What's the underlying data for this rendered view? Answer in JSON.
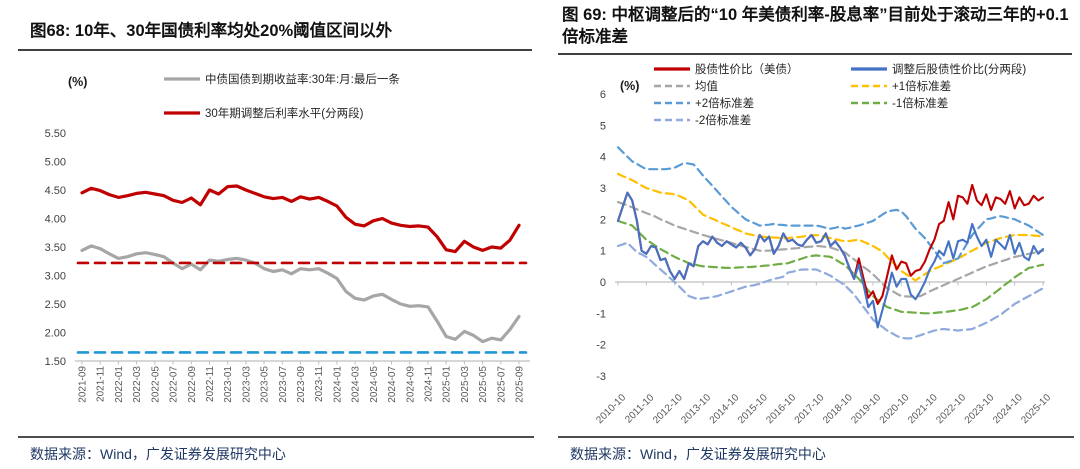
{
  "source_note": "数据来源：Wind，广发证券发展研究中心",
  "chart_data": [
    {
      "type": "line",
      "title": "图68: 10年、30年国债利率均处20%阈值区间以外",
      "unit": "(%)",
      "x_start": "2021-09",
      "x_step_months": 1,
      "n_points": 49,
      "x_tick_labels": [
        "2021-09",
        "2021-11",
        "2022-01",
        "2022-03",
        "2022-05",
        "2022-07",
        "2022-09",
        "2022-11",
        "2023-01",
        "2023-03",
        "2023-05",
        "2023-07",
        "2023-09",
        "2023-11",
        "2024-01",
        "2024-03",
        "2024-05",
        "2024-07",
        "2024-09",
        "2024-11",
        "2025-01",
        "2025-03",
        "2025-05",
        "2025-07",
        "2025-09"
      ],
      "ylim": [
        1.5,
        5.5
      ],
      "y_ticks": [
        "5.50",
        "5.00",
        "4.50",
        "4.00",
        "3.50",
        "3.00",
        "2.50",
        "2.00",
        "1.50"
      ],
      "grid": false,
      "legend_position": "top",
      "legend": [
        {
          "label": "中债国债到期收益率:30年:月:最后一条",
          "color": "#A6A6A6",
          "style": "solid"
        },
        {
          "label": "30年期调整后利率水平(分两段)",
          "color": "#C00000",
          "style": "solid"
        }
      ],
      "series": [
        {
          "id": "cgb-30y-yield",
          "name": "中债国债到期收益率:30年:月:最后一条",
          "color": "#A6A6A6",
          "style": "solid",
          "width": 3.2,
          "values": [
            3.44,
            3.52,
            3.47,
            3.38,
            3.3,
            3.33,
            3.38,
            3.4,
            3.37,
            3.33,
            3.22,
            3.12,
            3.2,
            3.1,
            3.27,
            3.25,
            3.28,
            3.3,
            3.27,
            3.22,
            3.12,
            3.07,
            3.1,
            3.03,
            3.12,
            3.1,
            3.12,
            3.04,
            2.95,
            2.72,
            2.6,
            2.57,
            2.64,
            2.67,
            2.58,
            2.5,
            2.46,
            2.47,
            2.45,
            2.2,
            1.93,
            1.88,
            2.02,
            1.95,
            1.84,
            1.9,
            1.87,
            2.05,
            2.28
          ]
        },
        {
          "id": "adjusted-30y-rate",
          "name": "30年期调整后利率水平(分两段)",
          "color": "#C00000",
          "style": "solid",
          "width": 3.2,
          "values": [
            4.45,
            4.53,
            4.49,
            4.42,
            4.37,
            4.4,
            4.44,
            4.46,
            4.43,
            4.4,
            4.32,
            4.28,
            4.36,
            4.24,
            4.5,
            4.43,
            4.56,
            4.57,
            4.5,
            4.44,
            4.38,
            4.35,
            4.37,
            4.3,
            4.38,
            4.34,
            4.37,
            4.3,
            4.22,
            4.02,
            3.9,
            3.87,
            3.96,
            4.0,
            3.92,
            3.88,
            3.86,
            3.87,
            3.85,
            3.68,
            3.45,
            3.42,
            3.6,
            3.5,
            3.44,
            3.5,
            3.48,
            3.62,
            3.88
          ]
        }
      ],
      "hlines": [
        {
          "id": "upper-threshold",
          "value": 3.22,
          "color": "#C00000",
          "style": "dashed"
        },
        {
          "id": "lower-threshold",
          "value": 1.65,
          "color": "#2196D6",
          "style": "dashed"
        }
      ]
    },
    {
      "type": "line",
      "title": "图 69: 中枢调整后的“10 年美债利率-股息率”目前处于滚动三年的+0.1 倍标准差",
      "unit": "(%)",
      "x_start": "2010-10",
      "x_step_months": 2,
      "n_points": 91,
      "x_tick_labels": [
        "2010-10",
        "2011-10",
        "2012-10",
        "2013-10",
        "2014-10",
        "2015-10",
        "2016-10",
        "2017-10",
        "2018-10",
        "2019-10",
        "2020-10",
        "2021-10",
        "2022-10",
        "2023-10",
        "2024-10",
        "2025-10"
      ],
      "ylim": [
        -3,
        6
      ],
      "y_ticks": [
        "6",
        "5",
        "4",
        "3",
        "2",
        "1",
        "0",
        "-1",
        "-2",
        "-3"
      ],
      "grid": false,
      "legend_position": "top",
      "legend_col1": [
        {
          "label": "股债性价比（美债）",
          "color": "#C00000",
          "style": "solid"
        },
        {
          "label": "均值",
          "color": "#A6A6A6",
          "style": "dashed"
        },
        {
          "label": "+2倍标准差",
          "color": "#5B9BD5",
          "style": "dashed"
        },
        {
          "label": "-2倍标准差",
          "color": "#8FAADC",
          "style": "dashed"
        }
      ],
      "legend_col2": [
        {
          "label": "调整后股债性价比(分两段)",
          "color": "#4472C4",
          "style": "solid"
        },
        {
          "label": "+1倍标准差",
          "color": "#FFC000",
          "style": "dashed"
        },
        {
          "label": "-1倍标准差",
          "color": "#70AD47",
          "style": "dashed"
        }
      ],
      "series": [
        {
          "id": "mean",
          "name": "均值",
          "color": "#A6A6A6",
          "style": "dashed",
          "width": 2.2,
          "values": [
            2.55,
            2.5,
            2.45,
            2.38,
            2.32,
            2.26,
            2.2,
            2.14,
            2.08,
            2.0,
            1.94,
            1.87,
            1.8,
            1.75,
            1.7,
            1.65,
            1.6,
            1.55,
            1.5,
            1.46,
            1.42,
            1.37,
            1.33,
            1.29,
            1.25,
            1.2,
            1.16,
            1.12,
            1.08,
            1.04,
            1.0,
            1.0,
            1.0,
            1.02,
            1.03,
            1.04,
            1.05,
            1.07,
            1.08,
            1.1,
            1.12,
            1.13,
            1.15,
            1.14,
            1.12,
            1.1,
            1.05,
            1.0,
            0.95,
            0.83,
            0.72,
            0.6,
            0.48,
            0.37,
            0.25,
            0.1,
            -0.05,
            -0.2,
            -0.28,
            -0.37,
            -0.45,
            -0.46,
            -0.47,
            -0.45,
            -0.45,
            -0.38,
            -0.3,
            -0.23,
            -0.17,
            -0.1,
            -0.03,
            0.03,
            0.1,
            0.17,
            0.23,
            0.3,
            0.37,
            0.43,
            0.5,
            0.55,
            0.6,
            0.65,
            0.7,
            0.75,
            0.8,
            0.83,
            0.87,
            0.9,
            0.93,
            0.97,
            1.0
          ]
        },
        {
          "id": "plus-1-std",
          "name": "+1倍标准差",
          "color": "#FFC000",
          "style": "dashed",
          "width": 2.2,
          "values": [
            3.45,
            3.38,
            3.32,
            3.25,
            3.17,
            3.08,
            3.0,
            2.95,
            2.9,
            2.85,
            2.83,
            2.82,
            2.8,
            2.74,
            2.67,
            2.6,
            2.45,
            2.3,
            2.15,
            2.08,
            2.02,
            1.95,
            1.88,
            1.82,
            1.75,
            1.68,
            1.62,
            1.55,
            1.52,
            1.48,
            1.45,
            1.44,
            1.43,
            1.42,
            1.41,
            1.4,
            1.4,
            1.42,
            1.43,
            1.45,
            1.47,
            1.48,
            1.5,
            1.47,
            1.43,
            1.4,
            1.37,
            1.33,
            1.3,
            1.31,
            1.33,
            1.35,
            1.28,
            1.22,
            1.15,
            1.06,
            0.97,
            0.8,
            0.65,
            0.5,
            0.35,
            0.25,
            0.15,
            0.05,
            0.15,
            0.25,
            0.35,
            0.42,
            0.48,
            0.55,
            0.62,
            0.68,
            0.75,
            0.83,
            0.92,
            1.0,
            1.08,
            1.17,
            1.25,
            1.3,
            1.35,
            1.4,
            1.43,
            1.47,
            1.5,
            1.5,
            1.5,
            1.5,
            1.48,
            1.47,
            1.45
          ]
        },
        {
          "id": "plus-2-std",
          "name": "+2倍标准差",
          "color": "#5B9BD5",
          "style": "dashed",
          "width": 2.2,
          "values": [
            4.3,
            4.15,
            4.0,
            3.85,
            3.77,
            3.68,
            3.6,
            3.6,
            3.6,
            3.6,
            3.6,
            3.62,
            3.65,
            3.72,
            3.8,
            3.78,
            3.75,
            3.58,
            3.4,
            3.23,
            3.07,
            2.9,
            2.73,
            2.57,
            2.4,
            2.27,
            2.13,
            2.0,
            1.93,
            1.87,
            1.8,
            1.82,
            1.83,
            1.85,
            1.83,
            1.82,
            1.8,
            1.8,
            1.8,
            1.8,
            1.8,
            1.8,
            1.8,
            1.77,
            1.73,
            1.7,
            1.73,
            1.77,
            1.7,
            1.73,
            1.77,
            1.8,
            1.85,
            1.9,
            1.95,
            2.05,
            2.15,
            2.25,
            2.28,
            2.3,
            2.25,
            2.1,
            1.9,
            1.7,
            1.55,
            1.4,
            1.2,
            1.0,
            0.8,
            0.6,
            0.65,
            0.7,
            0.75,
            1.0,
            1.25,
            1.5,
            1.67,
            1.83,
            2.0,
            2.03,
            2.07,
            2.1,
            2.07,
            2.03,
            2.0,
            1.93,
            1.87,
            1.8,
            1.7,
            1.6,
            1.5
          ]
        },
        {
          "id": "minus-1-std",
          "name": "-1倍标准差",
          "color": "#70AD47",
          "style": "dashed",
          "width": 2.2,
          "values": [
            1.95,
            1.9,
            1.85,
            1.8,
            1.65,
            1.5,
            1.35,
            1.25,
            1.15,
            1.05,
            0.97,
            0.88,
            0.8,
            0.73,
            0.67,
            0.6,
            0.57,
            0.53,
            0.5,
            0.49,
            0.48,
            0.47,
            0.46,
            0.45,
            0.45,
            0.46,
            0.47,
            0.48,
            0.48,
            0.49,
            0.5,
            0.52,
            0.53,
            0.55,
            0.57,
            0.58,
            0.6,
            0.65,
            0.7,
            0.75,
            0.8,
            0.83,
            0.85,
            0.83,
            0.82,
            0.8,
            0.72,
            0.63,
            0.55,
            0.4,
            0.25,
            0.1,
            -0.08,
            -0.27,
            -0.45,
            -0.57,
            -0.68,
            -0.8,
            -0.85,
            -0.9,
            -0.95,
            -0.96,
            -0.97,
            -0.98,
            -0.99,
            -1.0,
            -1.0,
            -0.99,
            -0.97,
            -0.96,
            -0.94,
            -0.92,
            -0.9,
            -0.87,
            -0.83,
            -0.8,
            -0.72,
            -0.63,
            -0.55,
            -0.43,
            -0.32,
            -0.2,
            -0.08,
            0.03,
            0.15,
            0.25,
            0.35,
            0.45,
            0.48,
            0.52,
            0.55
          ]
        },
        {
          "id": "minus-2-std",
          "name": "-2倍标准差",
          "color": "#8FAADC",
          "style": "dashed",
          "width": 2.2,
          "values": [
            1.15,
            1.2,
            1.25,
            1.1,
            0.95,
            0.88,
            0.8,
            0.67,
            0.53,
            0.4,
            0.27,
            0.13,
            0.0,
            -0.15,
            -0.3,
            -0.45,
            -0.5,
            -0.55,
            -0.52,
            -0.5,
            -0.48,
            -0.45,
            -0.4,
            -0.35,
            -0.3,
            -0.25,
            -0.2,
            -0.15,
            -0.12,
            -0.1,
            -0.05,
            0.0,
            0.05,
            0.1,
            0.13,
            0.17,
            0.3,
            0.33,
            0.37,
            0.4,
            0.4,
            0.4,
            0.4,
            0.33,
            0.27,
            0.2,
            0.1,
            0.0,
            -0.1,
            -0.25,
            -0.4,
            -0.6,
            -0.8,
            -1.0,
            -1.2,
            -1.32,
            -1.43,
            -1.55,
            -1.63,
            -1.72,
            -1.78,
            -1.8,
            -1.8,
            -1.75,
            -1.7,
            -1.65,
            -1.6,
            -1.55,
            -1.52,
            -1.5,
            -1.52,
            -1.53,
            -1.55,
            -1.53,
            -1.52,
            -1.5,
            -1.43,
            -1.37,
            -1.3,
            -1.22,
            -1.13,
            -1.05,
            -0.93,
            -0.82,
            -0.7,
            -0.62,
            -0.53,
            -0.45,
            -0.37,
            -0.28,
            -0.2
          ]
        },
        {
          "id": "equity-bond-ratio-us",
          "name": "股债性价比（美债）",
          "color": "#C00000",
          "style": "solid",
          "width": 2.1,
          "values": [
            1.95,
            2.4,
            2.85,
            2.6,
            1.95,
            1.0,
            0.9,
            1.15,
            1.1,
            0.7,
            0.75,
            0.35,
            0.1,
            0.35,
            0.1,
            0.6,
            0.5,
            1.15,
            1.3,
            1.2,
            1.45,
            1.25,
            1.15,
            1.3,
            1.2,
            1.1,
            1.25,
            1.1,
            0.85,
            1.05,
            1.5,
            1.3,
            1.45,
            0.9,
            1.15,
            1.55,
            1.3,
            1.35,
            1.2,
            1.15,
            1.35,
            1.5,
            1.25,
            1.3,
            1.55,
            1.15,
            1.3,
            1.1,
            0.85,
            0.45,
            0.1,
            0.75,
            0.1,
            -0.5,
            -0.3,
            -0.7,
            -0.45,
            0.2,
            0.85,
            0.4,
            0.65,
            0.6,
            0.2,
            0.35,
            0.4,
            0.65,
            1.05,
            1.35,
            1.85,
            1.95,
            2.55,
            2.0,
            2.75,
            2.7,
            2.5,
            3.1,
            2.6,
            2.45,
            2.8,
            2.3,
            2.7,
            2.65,
            2.5,
            2.9,
            2.35,
            2.7,
            2.45,
            2.5,
            2.75,
            2.6,
            2.7
          ]
        },
        {
          "id": "adjusted-ratio",
          "name": "调整后股债性价比(分两段)",
          "color": "#4472C4",
          "style": "solid",
          "width": 2.1,
          "values": [
            1.95,
            2.4,
            2.85,
            2.6,
            1.95,
            1.0,
            0.9,
            1.15,
            1.1,
            0.7,
            0.75,
            0.35,
            0.1,
            0.35,
            0.1,
            0.6,
            0.5,
            1.15,
            1.3,
            1.2,
            1.45,
            1.25,
            1.15,
            1.3,
            1.2,
            1.1,
            1.25,
            1.1,
            0.85,
            1.05,
            1.5,
            1.3,
            1.45,
            0.9,
            1.15,
            1.55,
            1.3,
            1.35,
            1.2,
            1.15,
            1.35,
            1.5,
            1.25,
            1.3,
            1.55,
            1.15,
            1.3,
            1.1,
            0.85,
            0.45,
            0.1,
            0.55,
            -0.1,
            -0.8,
            -0.6,
            -1.45,
            -0.9,
            -0.35,
            0.3,
            -0.15,
            0.1,
            0.1,
            -0.4,
            -0.55,
            -0.3,
            0.0,
            0.4,
            0.65,
            1.0,
            0.85,
            1.3,
            0.75,
            1.3,
            1.35,
            1.25,
            1.85,
            1.45,
            1.15,
            1.35,
            0.8,
            1.35,
            1.2,
            1.05,
            1.5,
            0.9,
            1.25,
            0.8,
            0.7,
            1.15,
            0.9,
            1.05
          ]
        }
      ]
    }
  ]
}
